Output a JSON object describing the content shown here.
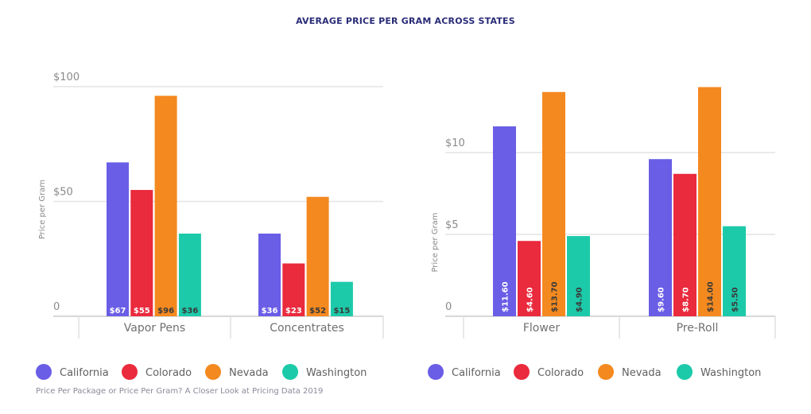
{
  "title": "AVERAGE PRICE PER GRAM ACROSS STATES",
  "source": "Price Per Package or Price Per Gram? A Closer Look at Pricing Data 2019",
  "colors": {
    "California": "#6a5de6",
    "Colorado": "#ea2a3d",
    "Nevada": "#f4891f",
    "Washington": "#1ccaa9"
  },
  "chart_data": [
    {
      "type": "bar",
      "title": "",
      "ylabel": "Price per Gram",
      "ylim": [
        0,
        100
      ],
      "yticks": [
        "0",
        "$50",
        "$100"
      ],
      "ytick_values": [
        0,
        50,
        100
      ],
      "grid": true,
      "legend": "bottom",
      "label_orientation": "horizontal",
      "categories": [
        "Vapor Pens",
        "Concentrates"
      ],
      "series": [
        {
          "name": "California",
          "values": [
            67,
            36
          ],
          "labels": [
            "$67",
            "$36"
          ]
        },
        {
          "name": "Colorado",
          "values": [
            55,
            23
          ],
          "labels": [
            "$55",
            "$23"
          ]
        },
        {
          "name": "Nevada",
          "values": [
            96,
            52
          ],
          "labels": [
            "$96",
            "$52"
          ]
        },
        {
          "name": "Washington",
          "values": [
            36,
            15
          ],
          "labels": [
            "$36",
            "$15"
          ]
        }
      ]
    },
    {
      "type": "bar",
      "title": "",
      "ylabel": "Price per Gram",
      "ylim": [
        0,
        14.5
      ],
      "yticks": [
        "0",
        "$5",
        "$10"
      ],
      "ytick_values": [
        0,
        5,
        10
      ],
      "grid": true,
      "legend": "bottom",
      "label_orientation": "vertical",
      "categories": [
        "Flower",
        "Pre-Roll"
      ],
      "series": [
        {
          "name": "California",
          "values": [
            11.6,
            9.6
          ],
          "labels": [
            "$11.60",
            "$9.60"
          ]
        },
        {
          "name": "Colorado",
          "values": [
            4.6,
            8.7
          ],
          "labels": [
            "$4.60",
            "$8.70"
          ]
        },
        {
          "name": "Nevada",
          "values": [
            13.7,
            14.0
          ],
          "labels": [
            "$13.70",
            "$14.00"
          ]
        },
        {
          "name": "Washington",
          "values": [
            4.9,
            5.5
          ],
          "labels": [
            "$4.90",
            "$5.50"
          ]
        }
      ]
    }
  ]
}
